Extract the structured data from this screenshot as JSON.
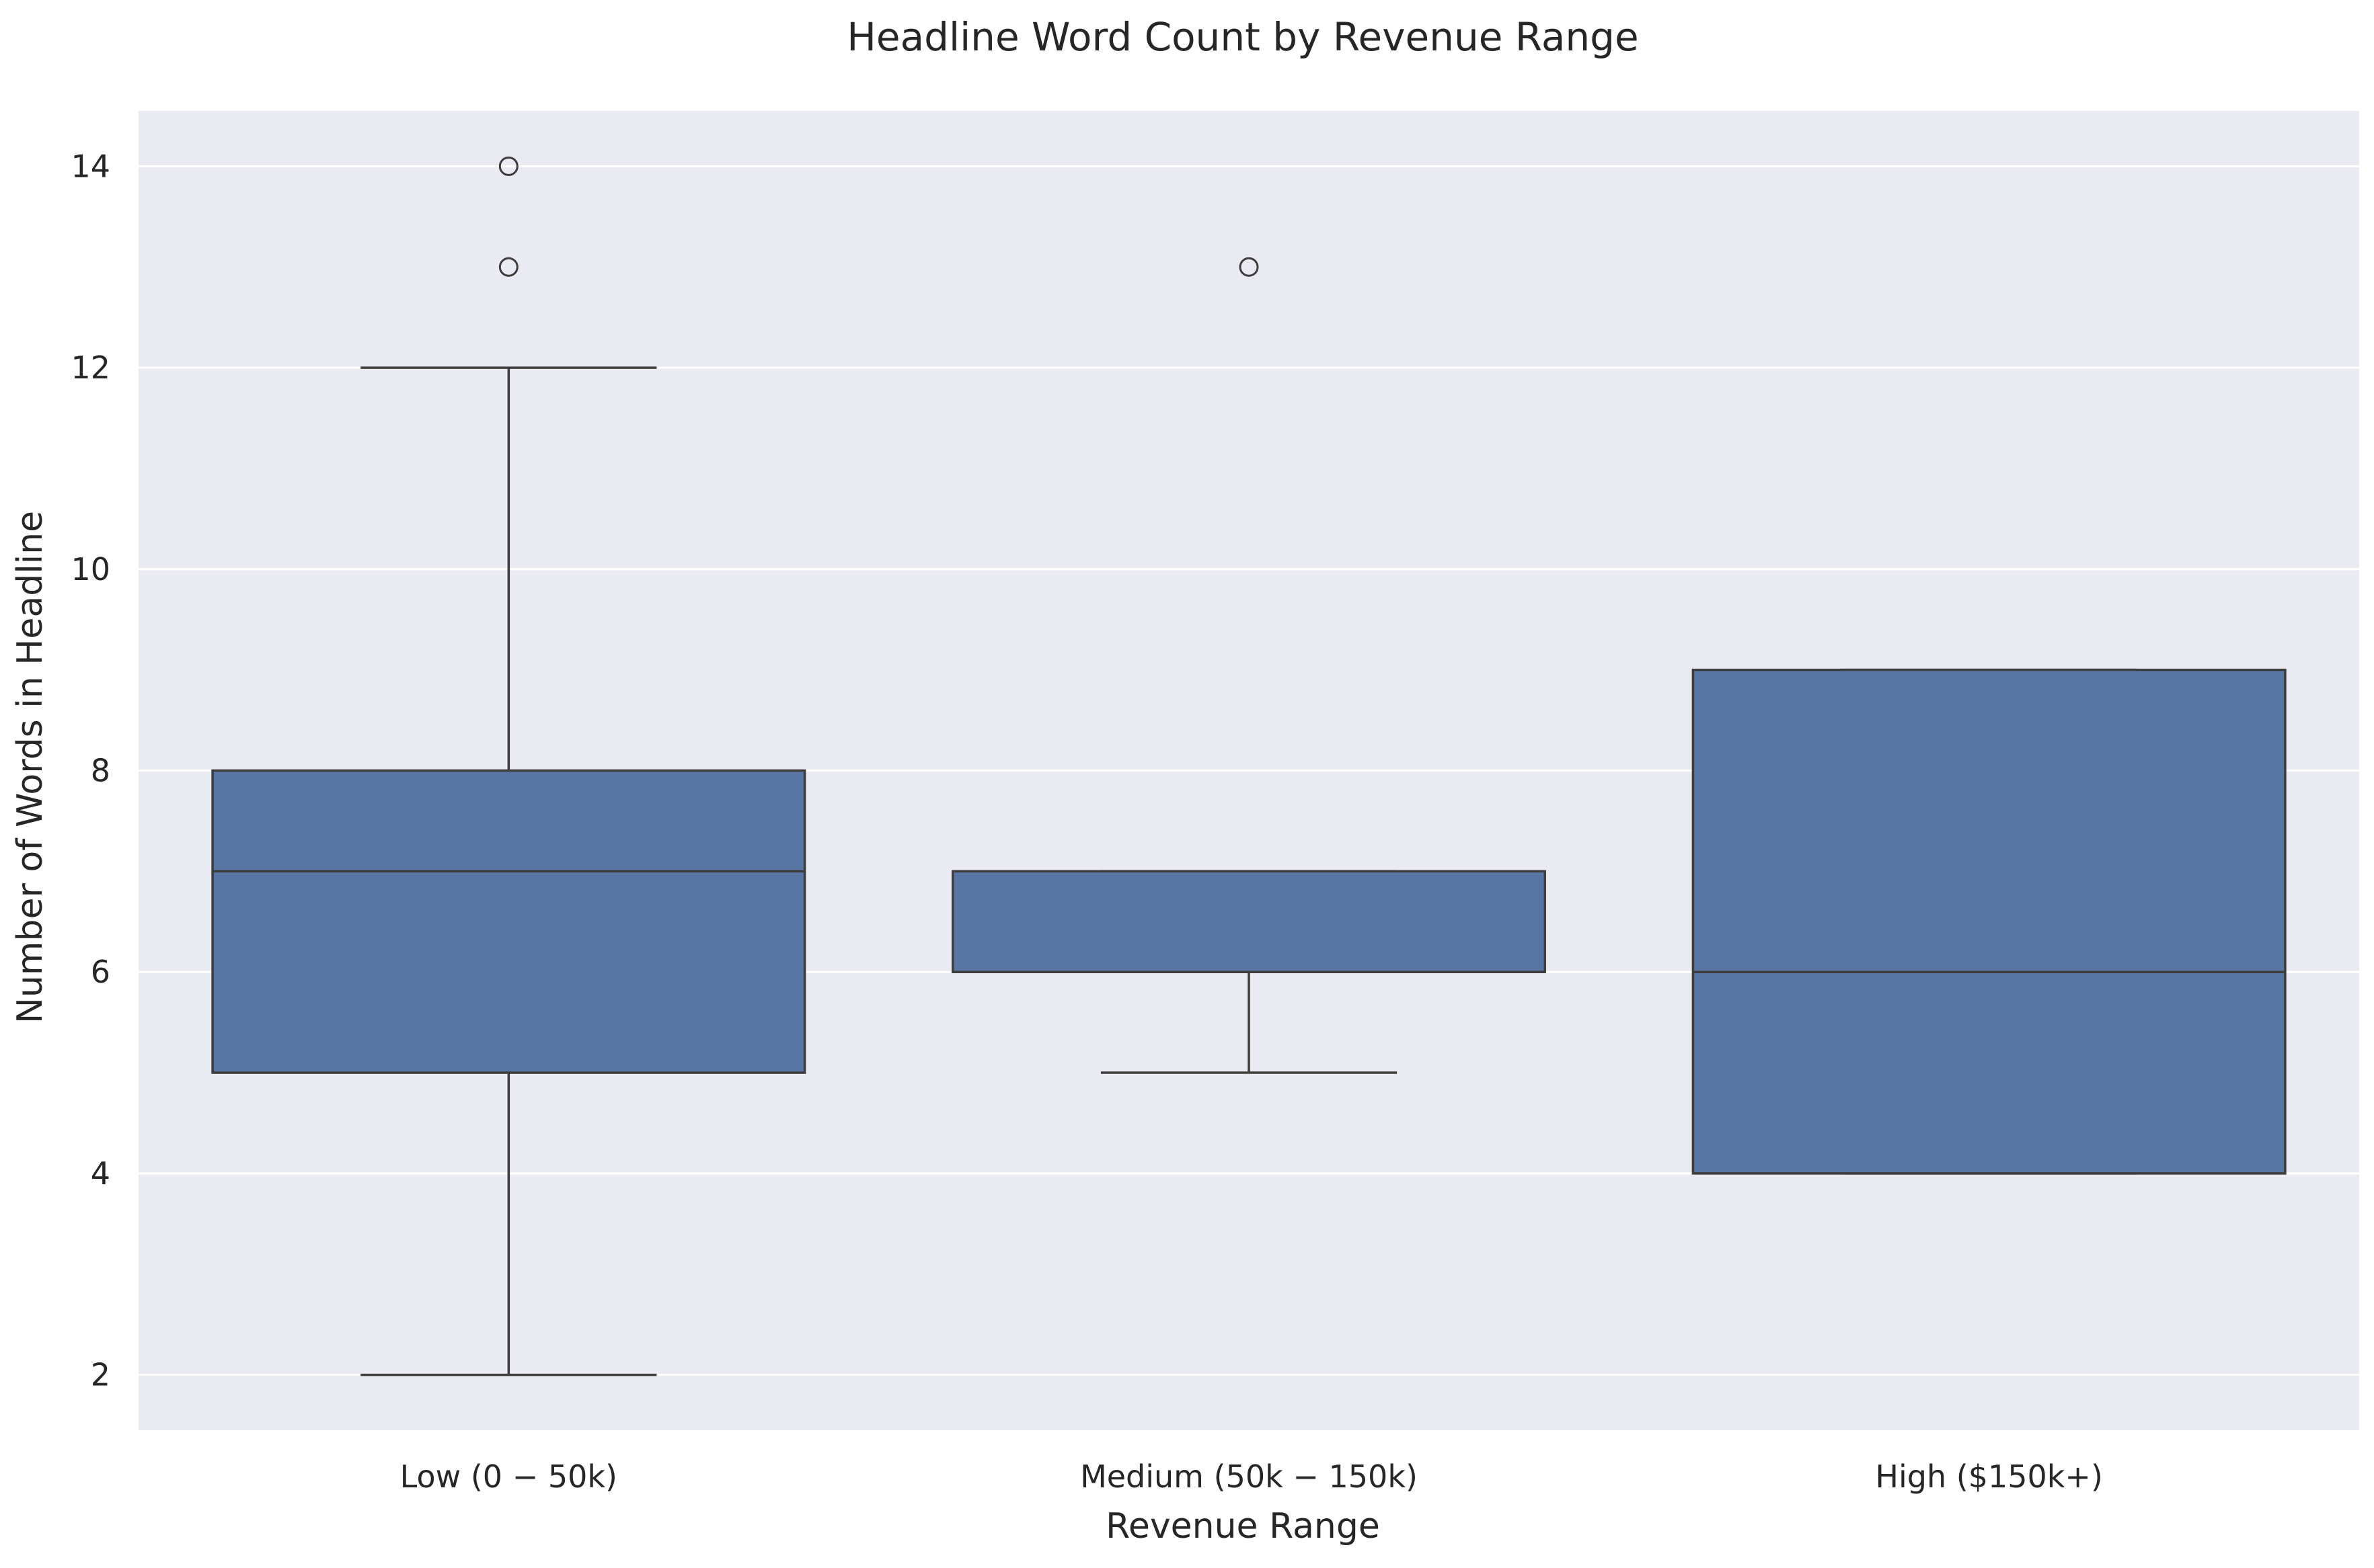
{
  "chart_data": {
    "type": "box",
    "title": "Headline Word Count by Revenue Range",
    "xlabel": "Revenue Range",
    "ylabel": "Number of Words in Headline",
    "ylim": [
      1.45,
      14.55
    ],
    "yticks": [
      2,
      4,
      6,
      8,
      10,
      12,
      14
    ],
    "grid": true,
    "box_color": "#5975a4",
    "line_color": "#3d3d3d",
    "background_color": "#eaeaf2",
    "categories": [
      "Low ($0-$50k)",
      "Medium ($50k-$150k)",
      "High ($150k+)"
    ],
    "category_labels": [
      "Low (0 − 50k)",
      "Medium (50k − 150k)",
      "High ($150k+)"
    ],
    "boxes": [
      {
        "category": "Low ($0-$50k)",
        "whisker_low": 2,
        "q1": 5,
        "median": 7,
        "q3": 8,
        "whisker_high": 12,
        "outliers": [
          13,
          14
        ]
      },
      {
        "category": "Medium ($50k-$150k)",
        "whisker_low": 5,
        "q1": 6,
        "median": 6,
        "q3": 7,
        "whisker_high": 7,
        "outliers": [
          13
        ]
      },
      {
        "category": "High ($150k+)",
        "whisker_low": 4,
        "q1": 4,
        "median": 6,
        "q3": 9,
        "whisker_high": 9,
        "outliers": []
      }
    ]
  }
}
